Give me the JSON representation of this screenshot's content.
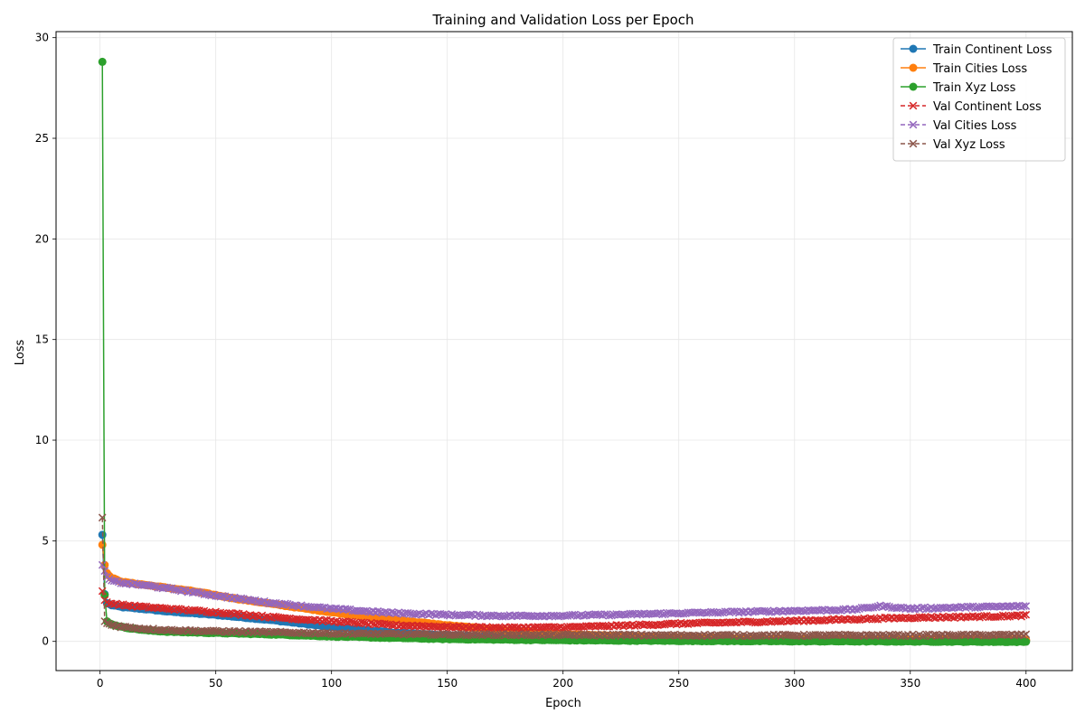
{
  "chart_data": {
    "type": "line",
    "title": "Training and Validation Loss per Epoch",
    "xlabel": "Epoch",
    "ylabel": "Loss",
    "xlim": [
      -19,
      420
    ],
    "ylim": [
      -1.45,
      30.3
    ],
    "xticks": [
      0,
      50,
      100,
      150,
      200,
      250,
      300,
      350,
      400
    ],
    "yticks": [
      0,
      5,
      10,
      15,
      20,
      25,
      30
    ],
    "grid": true,
    "legend_position": "top-right",
    "series": [
      {
        "name": "Train Continent Loss",
        "color": "#1f77b4",
        "dash": "solid",
        "marker": "circle",
        "points": [
          [
            1,
            5.3
          ],
          [
            2,
            2.35
          ],
          [
            3,
            1.9
          ],
          [
            5,
            1.8
          ],
          [
            10,
            1.7
          ],
          [
            20,
            1.6
          ],
          [
            30,
            1.48
          ],
          [
            50,
            1.32
          ],
          [
            75,
            1.05
          ],
          [
            100,
            0.72
          ],
          [
            125,
            0.45
          ],
          [
            150,
            0.3
          ],
          [
            175,
            0.2
          ],
          [
            200,
            0.14
          ],
          [
            250,
            0.09
          ],
          [
            300,
            0.06
          ],
          [
            350,
            0.05
          ],
          [
            400,
            0.04
          ]
        ]
      },
      {
        "name": "Train Cities Loss",
        "color": "#ff7f0e",
        "dash": "solid",
        "marker": "circle",
        "points": [
          [
            1,
            4.8
          ],
          [
            2,
            3.8
          ],
          [
            3,
            3.4
          ],
          [
            5,
            3.15
          ],
          [
            10,
            2.95
          ],
          [
            20,
            2.8
          ],
          [
            30,
            2.65
          ],
          [
            40,
            2.5
          ],
          [
            50,
            2.3
          ],
          [
            60,
            2.1
          ],
          [
            75,
            1.85
          ],
          [
            100,
            1.45
          ],
          [
            125,
            1.1
          ],
          [
            150,
            0.8
          ],
          [
            175,
            0.55
          ],
          [
            200,
            0.35
          ],
          [
            250,
            0.18
          ],
          [
            300,
            0.12
          ],
          [
            350,
            0.1
          ],
          [
            400,
            0.08
          ]
        ]
      },
      {
        "name": "Train Xyz Loss",
        "color": "#2ca02c",
        "dash": "solid",
        "marker": "circle",
        "points": [
          [
            1,
            28.8
          ],
          [
            2,
            2.3
          ],
          [
            3,
            1.0
          ],
          [
            5,
            0.85
          ],
          [
            10,
            0.7
          ],
          [
            20,
            0.55
          ],
          [
            30,
            0.48
          ],
          [
            50,
            0.42
          ],
          [
            75,
            0.35
          ],
          [
            100,
            0.25
          ],
          [
            125,
            0.18
          ],
          [
            150,
            0.12
          ],
          [
            200,
            0.06
          ],
          [
            250,
            0.03
          ],
          [
            300,
            0.01
          ],
          [
            350,
            0.0
          ],
          [
            400,
            -0.02
          ]
        ]
      },
      {
        "name": "Val Continent Loss",
        "color": "#d62728",
        "dash": "dashed",
        "marker": "x",
        "points": [
          [
            1,
            2.5
          ],
          [
            2,
            2.05
          ],
          [
            3,
            1.95
          ],
          [
            5,
            1.88
          ],
          [
            10,
            1.8
          ],
          [
            20,
            1.7
          ],
          [
            30,
            1.62
          ],
          [
            50,
            1.45
          ],
          [
            75,
            1.2
          ],
          [
            100,
            1.0
          ],
          [
            125,
            0.82
          ],
          [
            150,
            0.72
          ],
          [
            175,
            0.68
          ],
          [
            200,
            0.7
          ],
          [
            225,
            0.78
          ],
          [
            250,
            0.88
          ],
          [
            275,
            0.95
          ],
          [
            300,
            1.02
          ],
          [
            325,
            1.1
          ],
          [
            350,
            1.18
          ],
          [
            375,
            1.22
          ],
          [
            400,
            1.28
          ]
        ]
      },
      {
        "name": "Val Cities Loss",
        "color": "#9467bd",
        "dash": "dashed",
        "marker": "x",
        "points": [
          [
            1,
            3.8
          ],
          [
            2,
            3.5
          ],
          [
            3,
            3.2
          ],
          [
            5,
            3.0
          ],
          [
            10,
            2.9
          ],
          [
            20,
            2.78
          ],
          [
            30,
            2.62
          ],
          [
            40,
            2.45
          ],
          [
            50,
            2.28
          ],
          [
            60,
            2.12
          ],
          [
            75,
            1.9
          ],
          [
            100,
            1.62
          ],
          [
            125,
            1.42
          ],
          [
            150,
            1.32
          ],
          [
            175,
            1.27
          ],
          [
            200,
            1.28
          ],
          [
            225,
            1.33
          ],
          [
            250,
            1.4
          ],
          [
            275,
            1.46
          ],
          [
            300,
            1.52
          ],
          [
            325,
            1.58
          ],
          [
            337,
            1.75
          ],
          [
            350,
            1.63
          ],
          [
            375,
            1.7
          ],
          [
            400,
            1.75
          ]
        ]
      },
      {
        "name": "Val Xyz Loss",
        "color": "#8c564b",
        "dash": "dashed",
        "marker": "x",
        "points": [
          [
            1,
            6.15
          ],
          [
            2,
            1.0
          ],
          [
            3,
            0.9
          ],
          [
            5,
            0.82
          ],
          [
            10,
            0.72
          ],
          [
            20,
            0.62
          ],
          [
            30,
            0.56
          ],
          [
            50,
            0.5
          ],
          [
            75,
            0.45
          ],
          [
            100,
            0.4
          ],
          [
            150,
            0.34
          ],
          [
            200,
            0.32
          ],
          [
            250,
            0.3
          ],
          [
            300,
            0.3
          ],
          [
            350,
            0.3
          ],
          [
            400,
            0.32
          ]
        ]
      }
    ]
  }
}
